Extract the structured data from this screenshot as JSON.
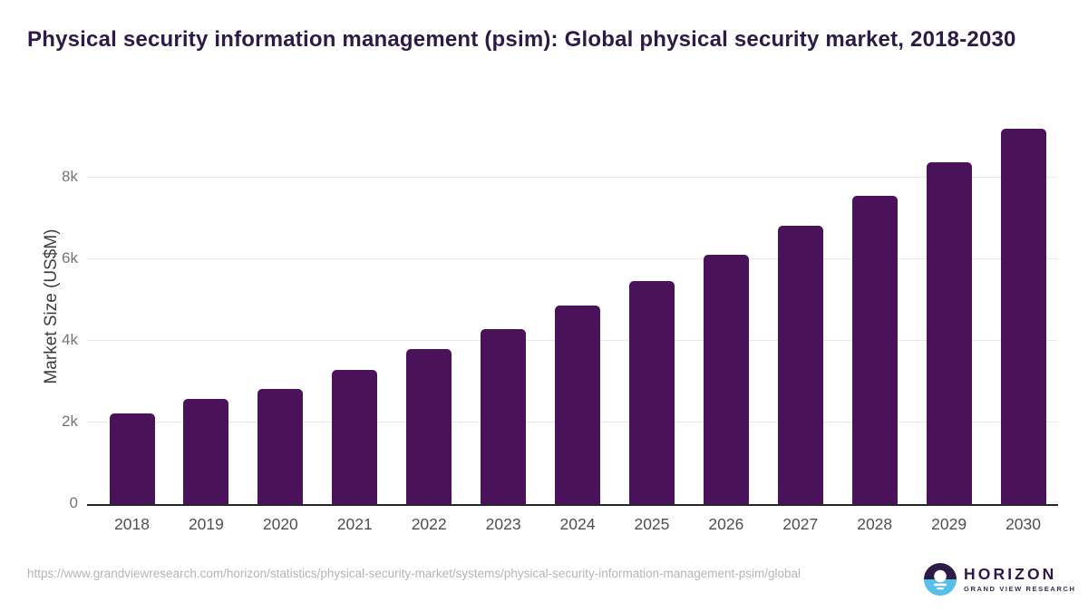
{
  "title": "Physical security information management (psim): Global physical security market, 2018-2030",
  "chart_data": {
    "type": "bar",
    "title": "Physical security information management (psim): Global physical security market, 2018-2030",
    "categories": [
      "2018",
      "2019",
      "2020",
      "2021",
      "2022",
      "2023",
      "2024",
      "2025",
      "2026",
      "2027",
      "2028",
      "2029",
      "2030"
    ],
    "values": [
      2220,
      2570,
      2830,
      3295,
      3795,
      4285,
      4870,
      5475,
      6115,
      6820,
      7565,
      8380,
      9220
    ],
    "xlabel": "",
    "ylabel": "Market Size (US$M)",
    "ylim": [
      0,
      9400
    ],
    "ytick_labels": [
      "0",
      "2k",
      "4k",
      "6k",
      "8k"
    ],
    "ytick_values": [
      0,
      2000,
      4000,
      6000,
      8000
    ],
    "grid": true,
    "legend": false,
    "bar_color": "#4a1259"
  },
  "colors": {
    "title_text": "#2e1a47",
    "bar": "#4a1259",
    "gridline": "#e8e8e8",
    "axis_line": "#262626",
    "y_tick_text": "#757575",
    "x_tick_text": "#4f4f4f",
    "url_text": "#b5b5b5",
    "logo_purple": "#2e1a47",
    "logo_blue": "#56c0e8"
  },
  "footer": {
    "source_url": "https://www.grandviewresearch.com/horizon/statistics/physical-security-market/systems/physical-security-information-management-psim/global",
    "logo": {
      "name": "HORIZON",
      "subtitle": "GRAND VIEW RESEARCH"
    }
  }
}
